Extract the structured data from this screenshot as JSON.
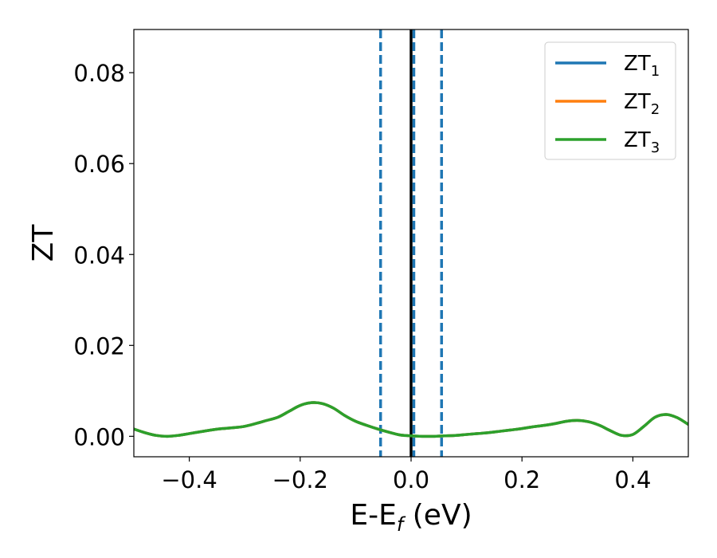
{
  "chart_data": {
    "type": "line",
    "xlabel": {
      "main": "E-E",
      "sub": "f",
      "suffix": " (eV)"
    },
    "ylabel": "ZT",
    "xlim": [
      -0.5,
      0.5
    ],
    "ylim": [
      -0.0045,
      0.0895
    ],
    "x_ticks": [
      -0.4,
      -0.2,
      0.0,
      0.2,
      0.4
    ],
    "x_tick_labels": [
      "−0.4",
      "−0.2",
      "0.0",
      "0.2",
      "0.4"
    ],
    "y_ticks": [
      0.0,
      0.02,
      0.04,
      0.06,
      0.08
    ],
    "y_tick_labels": [
      "0.00",
      "0.02",
      "0.04",
      "0.06",
      "0.08"
    ],
    "grid": false,
    "legend_position": "top-right",
    "vlines": [
      {
        "x": -0.055,
        "style": "dashed",
        "color": "#1f77b4"
      },
      {
        "x": 0.0,
        "style": "solid",
        "color": "#000000"
      },
      {
        "x": 0.005,
        "style": "dashed",
        "color": "#1f77b4"
      },
      {
        "x": 0.055,
        "style": "dashed",
        "color": "#1f77b4"
      }
    ],
    "series": [
      {
        "name": "ZT",
        "sub": "1",
        "color": "#1f77b4",
        "x": [
          -0.5,
          -0.48,
          -0.46,
          -0.44,
          -0.42,
          -0.4,
          -0.38,
          -0.36,
          -0.34,
          -0.32,
          -0.3,
          -0.28,
          -0.26,
          -0.24,
          -0.22,
          -0.2,
          -0.18,
          -0.16,
          -0.14,
          -0.12,
          -0.1,
          -0.08,
          -0.06,
          -0.04,
          -0.02,
          0.0,
          0.02,
          0.04,
          0.06,
          0.08,
          0.1,
          0.12,
          0.14,
          0.16,
          0.18,
          0.2,
          0.22,
          0.24,
          0.26,
          0.28,
          0.3,
          0.32,
          0.34,
          0.36,
          0.38,
          0.4,
          0.42,
          0.44,
          0.46,
          0.48,
          0.5
        ],
        "y": [
          0.0016,
          0.0008,
          0.0002,
          0.0,
          0.0002,
          0.0006,
          0.001,
          0.0014,
          0.0017,
          0.0019,
          0.0022,
          0.0028,
          0.0035,
          0.0042,
          0.0055,
          0.0068,
          0.0074,
          0.0072,
          0.0062,
          0.0046,
          0.0033,
          0.0024,
          0.0016,
          0.0009,
          0.0003,
          0.0001,
          0.0,
          0.0,
          0.0001,
          0.0002,
          0.0004,
          0.0006,
          0.0008,
          0.0011,
          0.0014,
          0.0017,
          0.0021,
          0.0024,
          0.0028,
          0.0033,
          0.0035,
          0.0032,
          0.0024,
          0.0012,
          0.0002,
          0.0004,
          0.0022,
          0.0042,
          0.0048,
          0.0041,
          0.0026
        ]
      },
      {
        "name": "ZT",
        "sub": "2",
        "color": "#ff7f0e",
        "x": [
          -0.5,
          -0.48,
          -0.46,
          -0.44,
          -0.42,
          -0.4,
          -0.38,
          -0.36,
          -0.34,
          -0.32,
          -0.3,
          -0.28,
          -0.26,
          -0.24,
          -0.22,
          -0.2,
          -0.18,
          -0.16,
          -0.14,
          -0.12,
          -0.1,
          -0.08,
          -0.06,
          -0.04,
          -0.02,
          0.0,
          0.02,
          0.04,
          0.06,
          0.08,
          0.1,
          0.12,
          0.14,
          0.16,
          0.18,
          0.2,
          0.22,
          0.24,
          0.26,
          0.28,
          0.3,
          0.32,
          0.34,
          0.36,
          0.38,
          0.4,
          0.42,
          0.44,
          0.46,
          0.48,
          0.5
        ],
        "y": [
          0.0016,
          0.0008,
          0.0002,
          0.0,
          0.0002,
          0.0006,
          0.001,
          0.0014,
          0.0017,
          0.0019,
          0.0022,
          0.0028,
          0.0035,
          0.0042,
          0.0055,
          0.0068,
          0.0074,
          0.0072,
          0.0062,
          0.0046,
          0.0033,
          0.0024,
          0.0016,
          0.0009,
          0.0003,
          0.0001,
          0.0,
          0.0,
          0.0001,
          0.0002,
          0.0004,
          0.0006,
          0.0008,
          0.0011,
          0.0014,
          0.0017,
          0.0021,
          0.0024,
          0.0028,
          0.0033,
          0.0035,
          0.0032,
          0.0024,
          0.0012,
          0.0002,
          0.0004,
          0.0022,
          0.0042,
          0.0048,
          0.0041,
          0.0026
        ]
      },
      {
        "name": "ZT",
        "sub": "3",
        "color": "#2ca02c",
        "x": [
          -0.5,
          -0.48,
          -0.46,
          -0.44,
          -0.42,
          -0.4,
          -0.38,
          -0.36,
          -0.34,
          -0.32,
          -0.3,
          -0.28,
          -0.26,
          -0.24,
          -0.22,
          -0.2,
          -0.18,
          -0.16,
          -0.14,
          -0.12,
          -0.1,
          -0.08,
          -0.06,
          -0.04,
          -0.02,
          0.0,
          0.02,
          0.04,
          0.06,
          0.08,
          0.1,
          0.12,
          0.14,
          0.16,
          0.18,
          0.2,
          0.22,
          0.24,
          0.26,
          0.28,
          0.3,
          0.32,
          0.34,
          0.36,
          0.38,
          0.4,
          0.42,
          0.44,
          0.46,
          0.48,
          0.5
        ],
        "y": [
          0.0016,
          0.0008,
          0.0002,
          0.0,
          0.0002,
          0.0006,
          0.001,
          0.0014,
          0.0017,
          0.0019,
          0.0022,
          0.0028,
          0.0035,
          0.0042,
          0.0055,
          0.0068,
          0.0074,
          0.0072,
          0.0062,
          0.0046,
          0.0033,
          0.0024,
          0.0016,
          0.0009,
          0.0003,
          0.0001,
          0.0,
          0.0,
          0.0001,
          0.0002,
          0.0004,
          0.0006,
          0.0008,
          0.0011,
          0.0014,
          0.0017,
          0.0021,
          0.0024,
          0.0028,
          0.0033,
          0.0035,
          0.0032,
          0.0024,
          0.0012,
          0.0002,
          0.0004,
          0.0022,
          0.0042,
          0.0048,
          0.0041,
          0.0026
        ]
      }
    ]
  }
}
